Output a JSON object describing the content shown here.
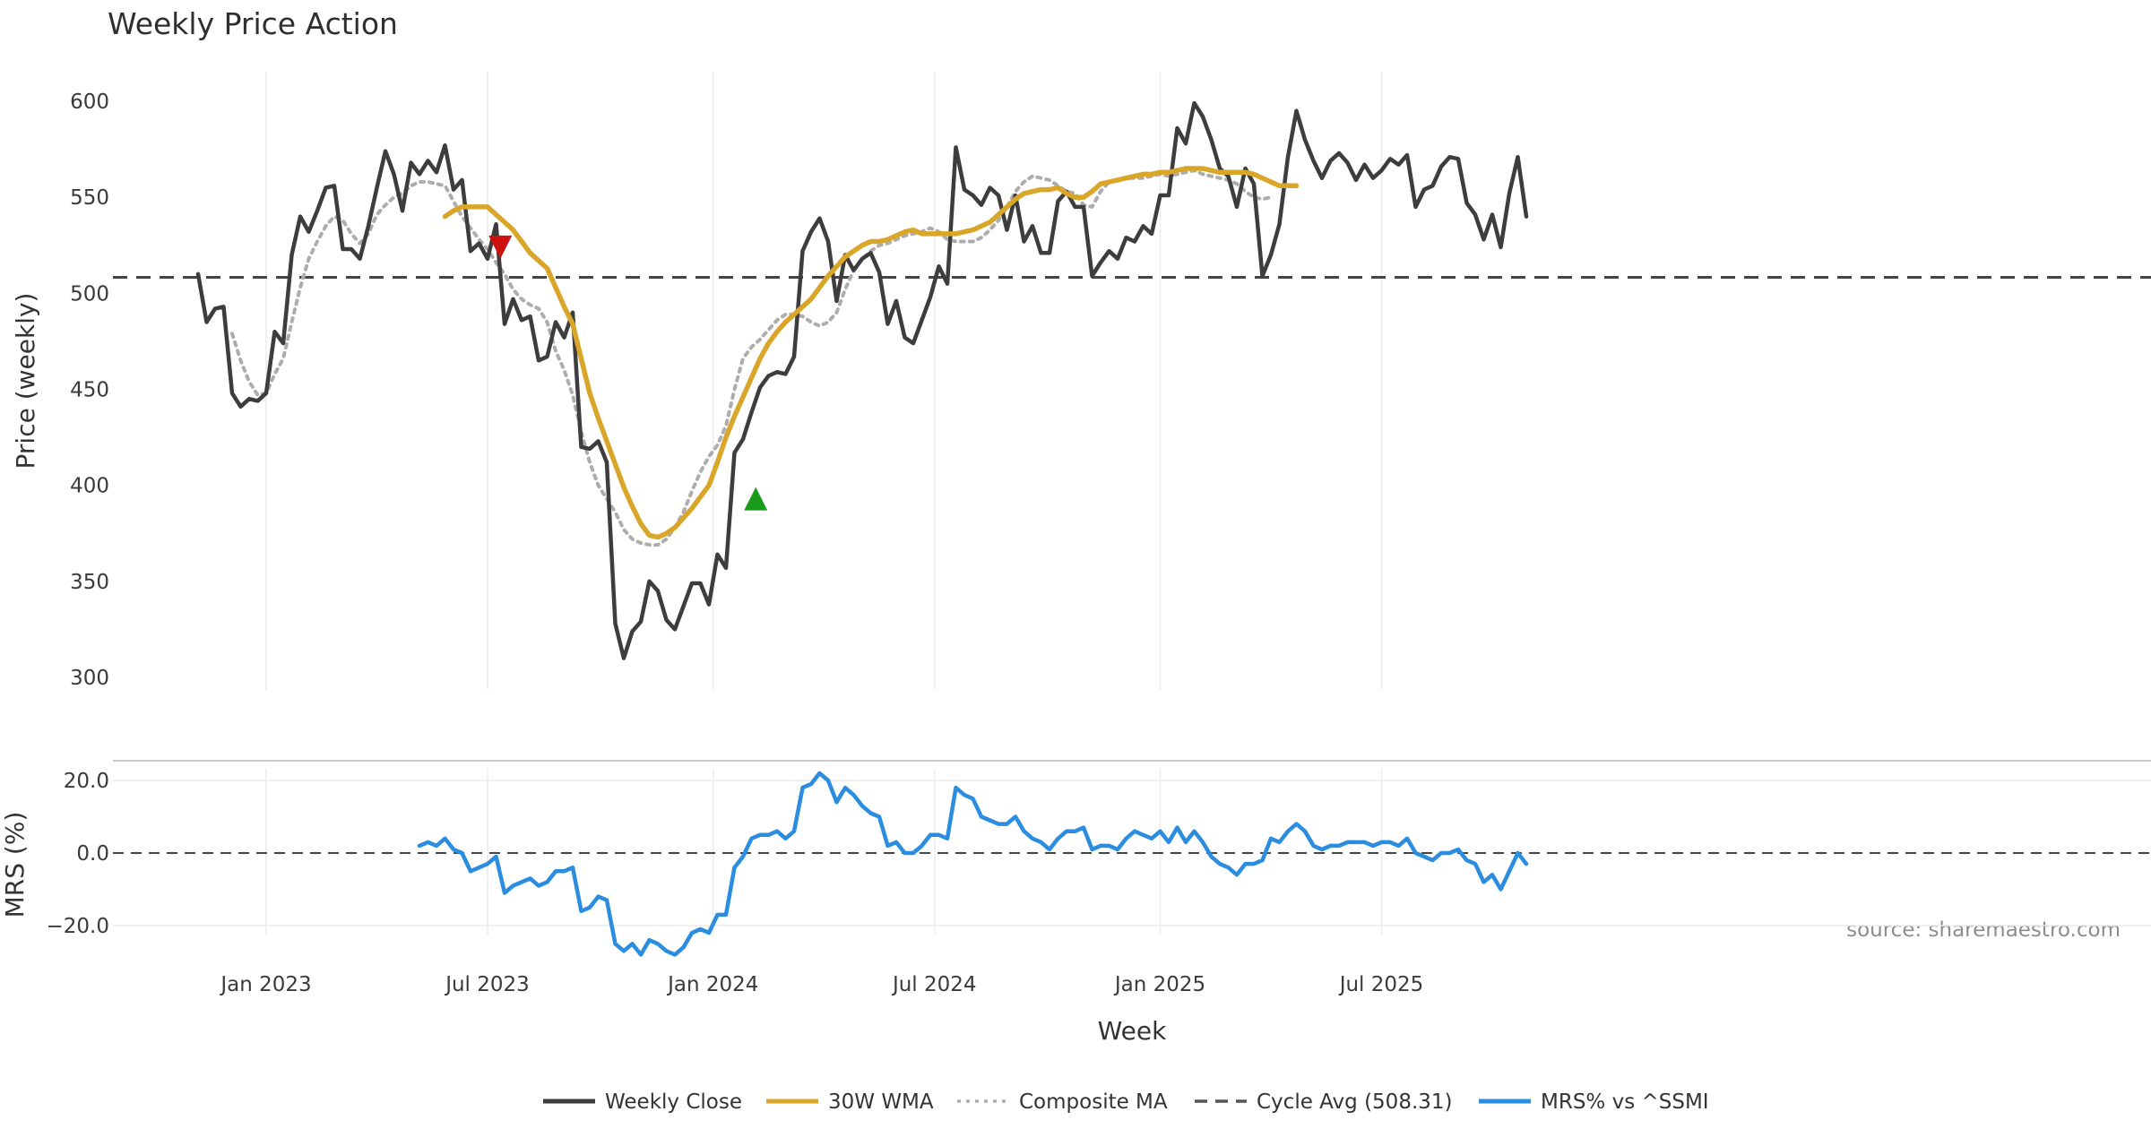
{
  "chart_data": {
    "type": "line",
    "title": "Weekly Price Action",
    "xlabel": "Week",
    "x_ticks": [
      "Jan 2023",
      "Jul 2023",
      "Jan 2024",
      "Jul 2024",
      "Jan 2025",
      "Jul 2025"
    ],
    "x_tick_weeks": [
      6,
      32,
      58.5,
      84.5,
      111,
      137
    ],
    "source": "source: sharemaestro.com",
    "price_panel": {
      "ylabel": "Price (weekly)",
      "ylim": [
        300,
        600
      ],
      "y_ticks": [
        "300",
        "350",
        "400",
        "450",
        "500",
        "550",
        "600"
      ],
      "y_tick_values": [
        300,
        350,
        400,
        450,
        500,
        550,
        600
      ],
      "cycle_avg": 508.31,
      "series": [
        {
          "name": "Weekly Close",
          "color": "#3d3d3d",
          "start_week": -2,
          "values": [
            510,
            485,
            492,
            493,
            448,
            441,
            445,
            444,
            448,
            480,
            474,
            520,
            540,
            532,
            543,
            555,
            556,
            523,
            523,
            518,
            535,
            555,
            574,
            562,
            543,
            568,
            562,
            569,
            563,
            577,
            554,
            559,
            522,
            526,
            518,
            536,
            484,
            497,
            486,
            488,
            465,
            467,
            485,
            477,
            490,
            420,
            419,
            423,
            412,
            328,
            310,
            324,
            329,
            350,
            345,
            330,
            325,
            337,
            349,
            349,
            338,
            364,
            357,
            417,
            424,
            438,
            451,
            457,
            459,
            458,
            467,
            522,
            532,
            539,
            527,
            496,
            520,
            512,
            518,
            521,
            511,
            484,
            496,
            477,
            474,
            486,
            498,
            514,
            505,
            576,
            554,
            551,
            546,
            555,
            551,
            533,
            551,
            527,
            535,
            521,
            521,
            548,
            553,
            545,
            545,
            509,
            516,
            522,
            518,
            529,
            527,
            535,
            531,
            551,
            551,
            586,
            578,
            599,
            592,
            580,
            565,
            561,
            545,
            565,
            557,
            509,
            520,
            536,
            571,
            595,
            580,
            569,
            560,
            569,
            573,
            568,
            559,
            567,
            560,
            564,
            570,
            567,
            572,
            545,
            554,
            556,
            566,
            571,
            570,
            547,
            541,
            528,
            541,
            524,
            552,
            571,
            540
          ]
        },
        {
          "name": "30W WMA",
          "color": "#d9a62a",
          "start_week": 27,
          "values": [
            540,
            543,
            545,
            545,
            545,
            545,
            541,
            537,
            533,
            527,
            521,
            517,
            513,
            503,
            493,
            484,
            466,
            448,
            435,
            423,
            411,
            399,
            389,
            380,
            374,
            373,
            375,
            378,
            383,
            388,
            394,
            400,
            412,
            425,
            436,
            446,
            456,
            466,
            474,
            480,
            485,
            489,
            493,
            497,
            503,
            509,
            514,
            519,
            522,
            525,
            527,
            527,
            528,
            530,
            532,
            533,
            531,
            531,
            531,
            531,
            531,
            532,
            533,
            535,
            537,
            541,
            545,
            549,
            552,
            553,
            554,
            554,
            555,
            552,
            550,
            550,
            553,
            557,
            558,
            559,
            560,
            561,
            562,
            562,
            563,
            563,
            564,
            565,
            565,
            565,
            564,
            563,
            563,
            563,
            563,
            562,
            560,
            558,
            556,
            556,
            556
          ]
        },
        {
          "name": "Composite MA",
          "color": "#adadad",
          "start_week": 2,
          "values": [
            479,
            465,
            454,
            447,
            448,
            458,
            466,
            485,
            503,
            518,
            527,
            535,
            540,
            538,
            531,
            526,
            531,
            541,
            546,
            550,
            552,
            556,
            558,
            558,
            557,
            556,
            548,
            540,
            534,
            528,
            523,
            516,
            510,
            502,
            497,
            494,
            492,
            485,
            470,
            460,
            447,
            428,
            412,
            400,
            393,
            386,
            377,
            372,
            370,
            369,
            369,
            372,
            378,
            386,
            397,
            407,
            415,
            421,
            431,
            450,
            466,
            472,
            476,
            481,
            486,
            489,
            489,
            488,
            485,
            483,
            485,
            490,
            502,
            512,
            518,
            522,
            525,
            526,
            528,
            530,
            531,
            532,
            534,
            532,
            528,
            527,
            527,
            527,
            529,
            533,
            538,
            545,
            553,
            558,
            561,
            560,
            559,
            556,
            553,
            552,
            546,
            545,
            553,
            558,
            559,
            560,
            560,
            560,
            561,
            562,
            561,
            562,
            563,
            564,
            562,
            561,
            560,
            559,
            557,
            553,
            550,
            549,
            550
          ]
        }
      ],
      "markers": [
        {
          "type": "sell",
          "week": 33.5,
          "value": 524,
          "color": "#cc1111"
        },
        {
          "type": "buy",
          "week": 63.5,
          "value": 393,
          "color": "#1a9a1a"
        }
      ]
    },
    "mrs_panel": {
      "ylabel": "MRS (%)",
      "ylim": [
        -29,
        24
      ],
      "y_ticks": [
        "20.0",
        "0.0",
        "−20.0"
      ],
      "y_tick_values": [
        20,
        0,
        -20
      ],
      "series": [
        {
          "name": "MRS% vs ^SSMI",
          "color": "#2b8de0",
          "start_week": 24,
          "values": [
            2,
            3,
            2,
            4,
            1,
            0,
            -5,
            -4,
            -3,
            -1,
            -11,
            -9,
            -8,
            -7,
            -9,
            -8,
            -5,
            -5,
            -4,
            -16,
            -15,
            -12,
            -13,
            -25,
            -27,
            -25,
            -28,
            -24,
            -25,
            -27,
            -28,
            -26,
            -22,
            -21,
            -22,
            -17,
            -17,
            -4,
            -1,
            4,
            5,
            5,
            6,
            4,
            6,
            18,
            19,
            22,
            20,
            14,
            18,
            16,
            13,
            11,
            10,
            2,
            3,
            0,
            0,
            2,
            5,
            5,
            4,
            18,
            16,
            15,
            10,
            9,
            8,
            8,
            10,
            6,
            4,
            3,
            1,
            4,
            6,
            6,
            7,
            1,
            2,
            2,
            1,
            4,
            6,
            5,
            4,
            6,
            3,
            7,
            3,
            6,
            3,
            -1,
            -3,
            -4,
            -6,
            -3,
            -3,
            -2,
            4,
            3,
            6,
            8,
            6,
            2,
            1,
            2,
            2,
            3,
            3,
            3,
            2,
            3,
            3,
            2,
            4,
            0,
            -1,
            -2,
            0,
            0,
            1,
            -2,
            -3,
            -8,
            -6,
            -10,
            -5,
            0,
            -3
          ]
        }
      ],
      "zero_line": 0
    },
    "legend": {
      "placement": "bottom-center",
      "entries": [
        {
          "label": "Weekly Close",
          "style": "solid",
          "color": "#3d3d3d"
        },
        {
          "label": "30W WMA",
          "style": "solid",
          "color": "#d9a62a"
        },
        {
          "label": "Composite MA",
          "style": "dotted",
          "color": "#adadad"
        },
        {
          "label": "Cycle Avg (508.31)",
          "style": "dashed",
          "color": "#555555"
        },
        {
          "label": "MRS% vs ^SSMI",
          "style": "solid",
          "color": "#2b8de0"
        }
      ]
    }
  }
}
